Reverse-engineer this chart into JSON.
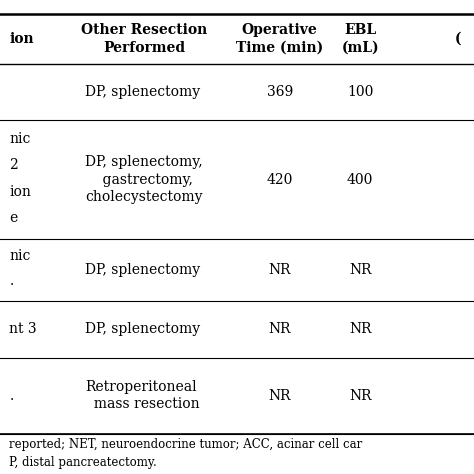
{
  "header_left_partial": "ion",
  "header_cols": [
    "Other Resection\nPerformed",
    "Operative\nTime (min)",
    "EBL\n(mL)",
    "("
  ],
  "rows": [
    {
      "left": "",
      "resection": "DP, splenectomy",
      "op_time": "369",
      "ebl": "100"
    },
    {
      "left": "nic\n2\nion\ne",
      "resection": "DP, splenectomy,\n    gastrectomy,\ncholecystectomy",
      "op_time": "420",
      "ebl": "400"
    },
    {
      "left": "nic\n.",
      "resection": "DP, splenectomy",
      "op_time": "NR",
      "ebl": "NR"
    },
    {
      "left": "nt 3",
      "resection": "DP, splenectomy",
      "op_time": "NR",
      "ebl": "NR"
    },
    {
      "left": ".",
      "resection": "Retroperitoneal\n  mass resection",
      "op_time": "NR",
      "ebl": "NR"
    }
  ],
  "footnote_line1": "reported; NET, neuroendocrine tumor; ACC, acinar cell car",
  "footnote_line2": "P, distal pancreatectomy.",
  "bg_color": "#ffffff",
  "text_color": "#000000",
  "line_color": "#000000",
  "font_size": 10,
  "header_font_size": 10,
  "footnote_font_size": 8.5
}
